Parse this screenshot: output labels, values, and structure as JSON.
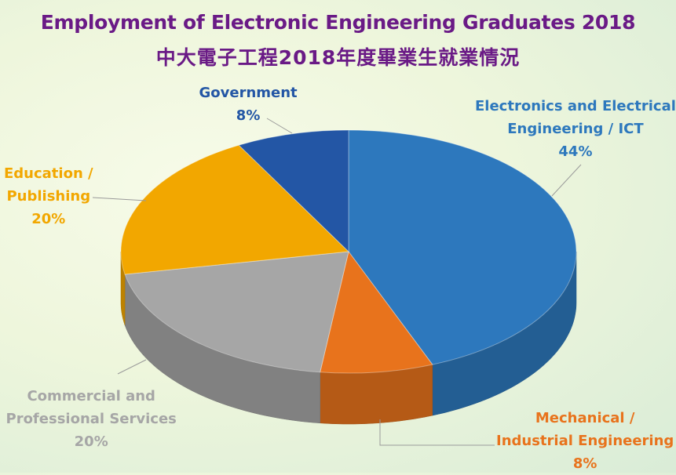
{
  "chart_data": {
    "type": "pie",
    "title": "Employment of Electronic Engineering Graduates 2018",
    "subtitle": "中大電子工程2018年度畢業生就業情況",
    "slices": [
      {
        "label_lines": [
          "Electronics and Electrical",
          "Engineering / ICT"
        ],
        "value": 44,
        "value_label": "44%",
        "color": "#2d78bd"
      },
      {
        "label_lines": [
          "Mechanical /",
          "Industrial Engineering"
        ],
        "value": 8,
        "value_label": "8%",
        "color": "#e8731c"
      },
      {
        "label_lines": [
          "Commercial and",
          "Professional Services"
        ],
        "value": 20,
        "value_label": "20%",
        "color": "#a6a6a6"
      },
      {
        "label_lines": [
          "Education /",
          "Publishing"
        ],
        "value": 20,
        "value_label": "20%",
        "color": "#f2a700"
      },
      {
        "label_lines": [
          "Government"
        ],
        "value": 8,
        "value_label": "8%",
        "color": "#2356a5"
      }
    ],
    "start_position": "top",
    "direction": "clockwise",
    "style": "3d-pie"
  }
}
